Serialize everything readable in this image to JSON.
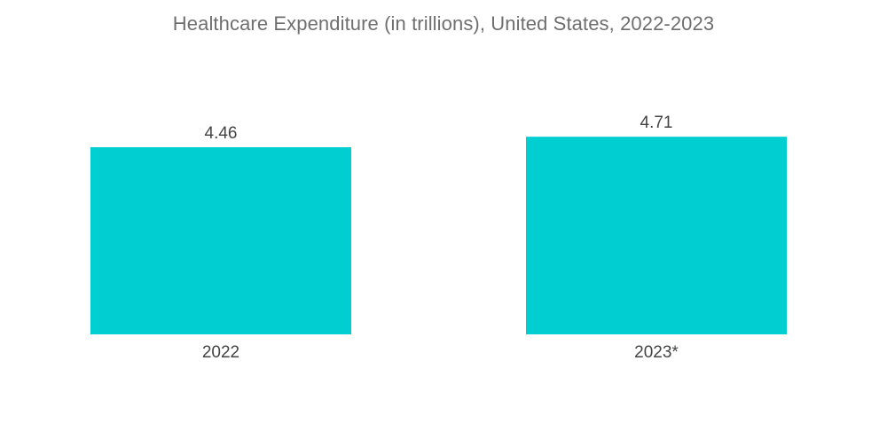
{
  "chart_data": {
    "type": "bar",
    "title": "Healthcare Expenditure (in trillions), United States, 2022-2023",
    "categories": [
      "2022",
      "2023*"
    ],
    "values": [
      4.46,
      4.71
    ],
    "data_labels": [
      "4.46",
      "4.71"
    ],
    "xlabel": "",
    "ylabel": "",
    "ylim": [
      0,
      5
    ],
    "grid": false,
    "legend": "none",
    "bar_color": "#00CED1"
  }
}
